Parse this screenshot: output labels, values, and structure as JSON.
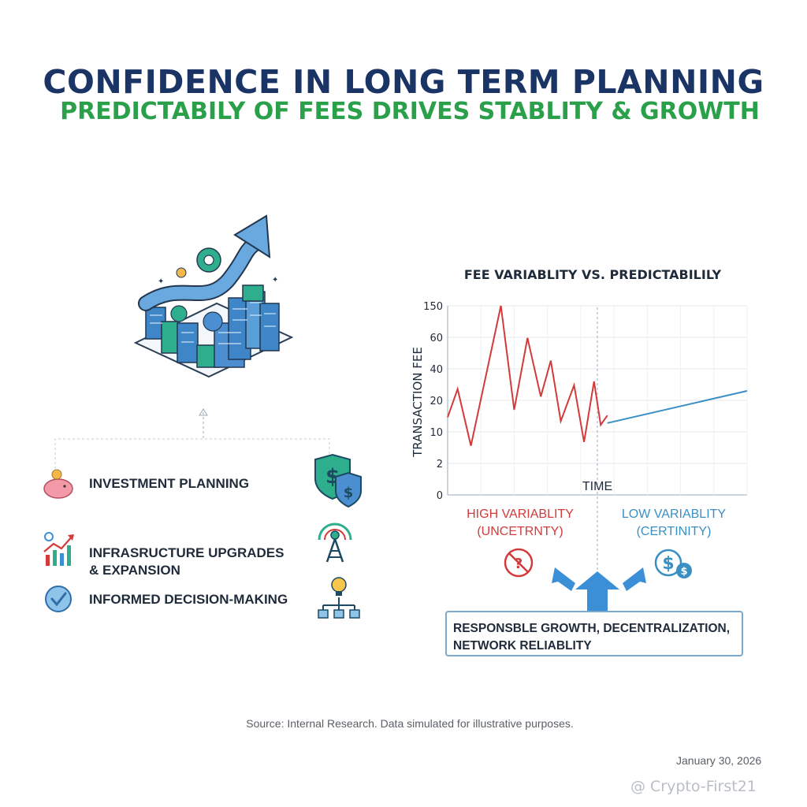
{
  "header": {
    "title": "CONFIDENCE IN LONG TERM PLANNING",
    "subtitle": "PREDICTABILY OF FEES DRIVES STABLITY & GROWTH"
  },
  "colors": {
    "title": "#1b3466",
    "subtitle": "#2ba04a",
    "high_variability": "#d33a3a",
    "low_variability": "#3a8fc4",
    "accent_blue": "#3b8fd6"
  },
  "benefits": [
    {
      "label": "INVESTMENT PLANNING",
      "icon": "piggy-bank-icon",
      "right_icon": "dollar-shield-icon"
    },
    {
      "label": "INFRASRUCTURE UPGRADES\n& EXPANSION",
      "icon": "growth-chart-icon",
      "right_icon": "network-tower-icon"
    },
    {
      "label": "INFORMED DECISION-MAKING",
      "icon": "check-badge-icon",
      "right_icon": "idea-network-icon"
    }
  ],
  "chart_data": {
    "type": "line",
    "title": "FEE VARIABLITY VS. PREDICTABILILY",
    "xlabel": "TIME",
    "ylabel": "TRANSACTION FEE",
    "y_tick_labels": [
      "0",
      "2",
      "10",
      "20",
      "40",
      "60",
      "150"
    ],
    "grid": true,
    "divider": "vertical dashed line separating high and low variability",
    "series": [
      {
        "name": "High variability",
        "color": "#d33a3a",
        "x": [
          0.0,
          0.3,
          0.7,
          1.6,
          2.0,
          2.4,
          2.8,
          3.1,
          3.4,
          3.8,
          4.1,
          4.4,
          4.6,
          4.8
        ],
        "y_level": [
          4.1,
          5.6,
          2.6,
          10.0,
          4.5,
          8.3,
          5.2,
          7.1,
          3.9,
          5.8,
          2.8,
          6.0,
          3.7,
          4.2
        ]
      },
      {
        "name": "Low variability",
        "color": "#3a8fc4",
        "x": [
          4.8,
          9.0
        ],
        "y_level": [
          3.8,
          5.5
        ]
      }
    ],
    "annotations": {
      "high_variability": "HIGH VARIABLITY\n(UNCETRNTY)",
      "low_variability": "LOW VARIABLITY\n(CERTINITY)"
    }
  },
  "note_box": "RESPONSBLE GROWTH, DECENTRALIZATION,\nNETWORK RELIABLITY",
  "footer": {
    "source": "Source: Internal Research. Data simulated for illustrative purposes.",
    "date": "January 30, 2026",
    "watermark": "@ Crypto-First21"
  }
}
